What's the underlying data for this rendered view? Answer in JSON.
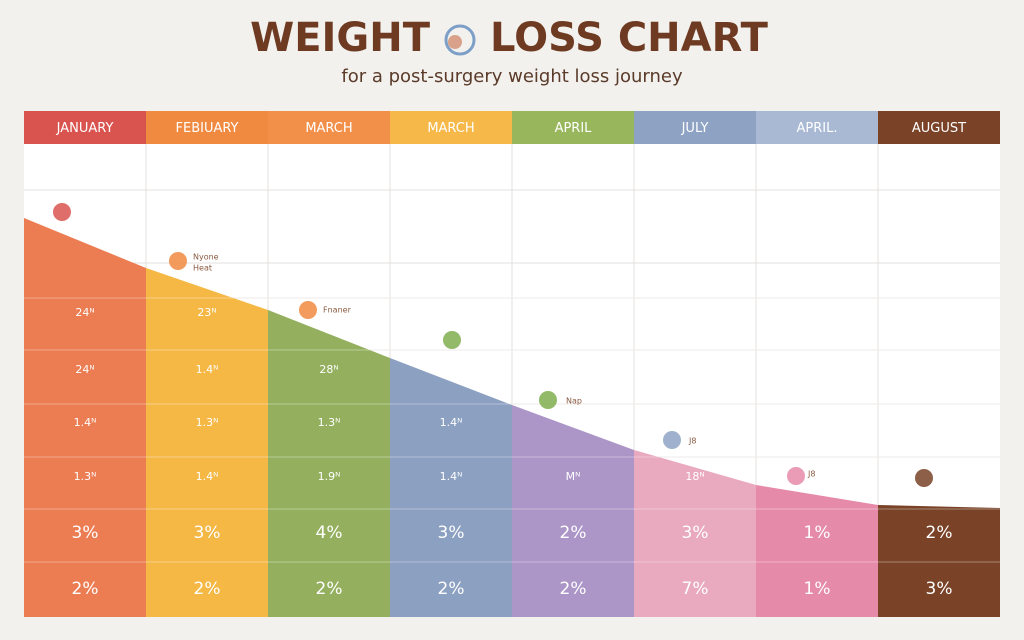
{
  "header": {
    "title_left": "WEIGHT",
    "title_right": "LOSS CHART",
    "subtitle": "for a post-surgery weight loss journey"
  },
  "table": {
    "columns": [
      "JANUARY",
      "FEBIUARY",
      "MARCH",
      "MARCH",
      "APRIL",
      "JULY",
      "APRIL.",
      "AUGUST"
    ],
    "rows": [
      [
        "24ᴺ",
        "23ᴺ",
        null,
        null,
        null,
        null,
        null,
        null
      ],
      [
        "24ᴺ",
        "1.4ᴺ",
        "28ᴺ",
        null,
        null,
        null,
        null,
        null
      ],
      [
        "1.4ᴺ",
        "1.3ᴺ",
        "1.3ᴺ",
        "1.4ᴺ",
        null,
        null,
        null,
        null
      ],
      [
        "1.3ᴺ",
        "1.4ᴺ",
        "1.9ᴺ",
        "1.4ᴺ",
        "Mᴺ",
        "18ᴺ",
        null,
        null
      ],
      [
        "3%",
        "3%",
        "4%",
        "3%",
        "2%",
        "3%",
        "1%",
        "2%"
      ],
      [
        "2%",
        "2%",
        "2%",
        "2%",
        "2%",
        "7%",
        "1%",
        "3%"
      ]
    ]
  },
  "annotations": [
    "Nyone",
    "Heat",
    "Fnaner",
    "Nap",
    "J8",
    "J8"
  ]
}
